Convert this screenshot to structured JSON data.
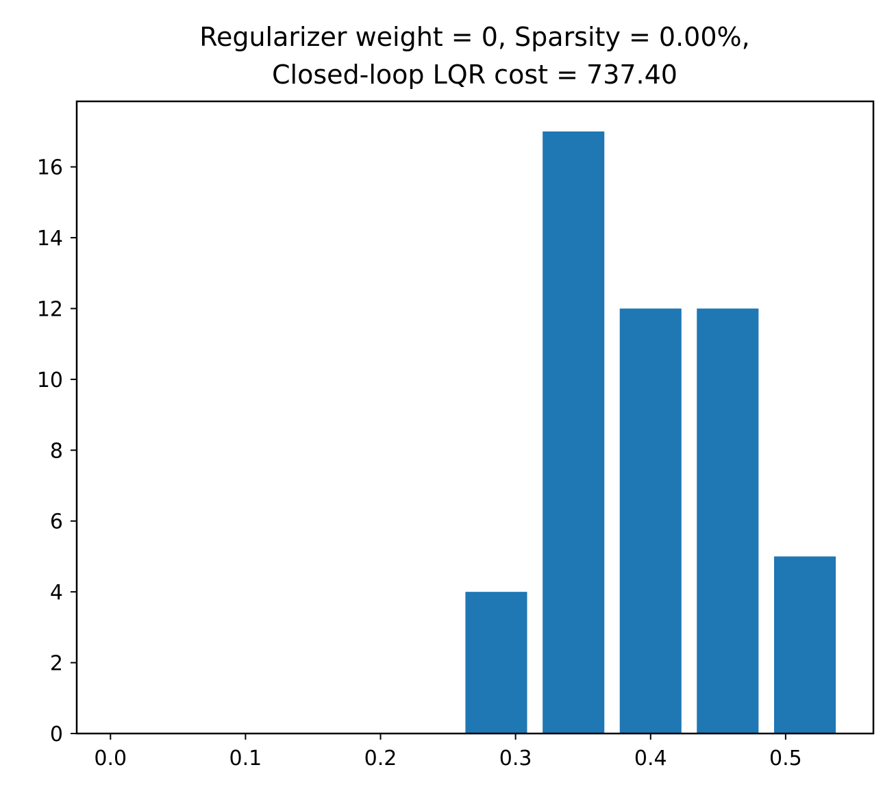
{
  "chart_data": {
    "type": "bar",
    "title_lines": [
      "Regularizer weight = 0, Sparsity = 0.00%,",
      "Closed-loop LQR cost = 737.40"
    ],
    "xlabel": "",
    "ylabel": "",
    "x": [
      0.2857,
      0.3429,
      0.4,
      0.4571,
      0.5143
    ],
    "values": [
      4,
      17,
      12,
      12,
      5
    ],
    "bar_width": 0.0457,
    "xlim": [
      -0.025,
      0.565
    ],
    "ylim": [
      0,
      17.85
    ],
    "xticks": [
      0.0,
      0.1,
      0.2,
      0.3,
      0.4,
      0.5
    ],
    "xtick_labels": [
      "0.0",
      "0.1",
      "0.2",
      "0.3",
      "0.4",
      "0.5"
    ],
    "yticks": [
      0,
      2,
      4,
      6,
      8,
      10,
      12,
      14,
      16
    ],
    "ytick_labels": [
      "0",
      "2",
      "4",
      "6",
      "8",
      "10",
      "12",
      "14",
      "16"
    ],
    "bar_color": "#1f77b4",
    "grid": false,
    "legend": "none"
  }
}
